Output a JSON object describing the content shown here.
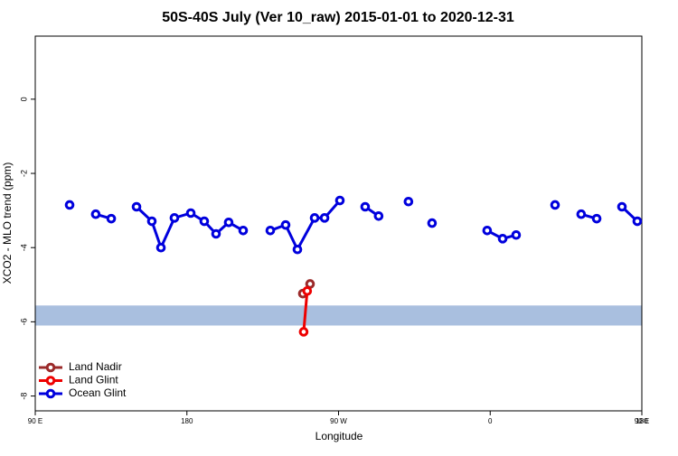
{
  "chart_data": {
    "type": "line",
    "title": "50S-40S July (Ver 10_raw)   2015-01-01 to 2020-12-31",
    "xlabel": "Longitude",
    "ylabel": "XCO2 - MLO trend (ppm)",
    "xlim": [
      90,
      450
    ],
    "xticks": [
      {
        "value": 90,
        "label": "90 E"
      },
      {
        "value": 180,
        "label": "180"
      },
      {
        "value": 270,
        "label": "90 W"
      },
      {
        "value": 360,
        "label": "0"
      },
      {
        "value": 450,
        "label": "90 E"
      },
      {
        "value": 540,
        "label": "180"
      }
    ],
    "ylim": [
      -8.4,
      1.7
    ],
    "yticks": [
      0,
      -2,
      -4,
      -6,
      -8
    ],
    "band": [
      -6.1,
      -5.56
    ],
    "band_color": "#a9bfdf",
    "legend": "bottom-left",
    "series": [
      {
        "name": "Land Nadir",
        "color": "#9b2a2a",
        "x": [
          248.8,
          253.1
        ],
        "values": [
          -5.24,
          -4.98
        ]
      },
      {
        "name": "Land Glint",
        "color": "#ee0000",
        "x": [
          249.3,
          251.4
        ],
        "values": [
          -6.27,
          -5.17
        ]
      },
      {
        "name": "Ocean Glint",
        "color": "#0000dd",
        "x": [
          110.4,
          null,
          125.9,
          135.1,
          null,
          150.1,
          159.2,
          164.6,
          172.6,
          182.3,
          190.3,
          197.3,
          204.8,
          213.4,
          null,
          229.5,
          238.6,
          245.6,
          255.8,
          261.7,
          270.8,
          null,
          285.8,
          293.8,
          null,
          311.5,
          null,
          325.5,
          null,
          358.2,
          367.4,
          375.4,
          null,
          398.5,
          null,
          414.0,
          423.2,
          null,
          438.2,
          447.3
        ],
        "values": [
          -2.85,
          null,
          -3.1,
          -3.22,
          null,
          -2.9,
          -3.29,
          -4.0,
          -3.2,
          -3.07,
          -3.29,
          -3.63,
          -3.32,
          -3.54,
          null,
          -3.54,
          -3.39,
          -4.05,
          -3.2,
          -3.2,
          -2.73,
          null,
          -2.9,
          -3.15,
          null,
          -2.76,
          null,
          -3.34,
          null,
          -3.54,
          -3.76,
          -3.66,
          null,
          -2.85,
          null,
          -3.1,
          -3.22,
          null,
          -2.9,
          -3.29
        ]
      }
    ]
  }
}
